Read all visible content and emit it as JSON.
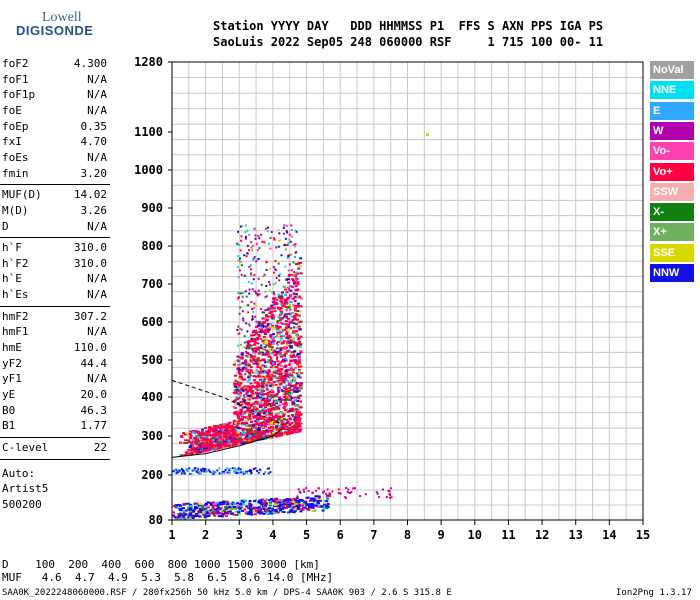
{
  "logo": {
    "line1": "Lowell",
    "line2": "DIGISONDE"
  },
  "header": {
    "line1": "Station YYYY DAY   DDD HHMMSS P1  FFS S AXN PPS IGA PS",
    "line2": "SaoLuis 2022 Sep05 248 060000 RSF     1 715 100 00- 11"
  },
  "params_groups": [
    [
      {
        "name": "foF2",
        "value": "4.300"
      },
      {
        "name": "foF1",
        "value": "N/A"
      },
      {
        "name": "foF1p",
        "value": "N/A"
      },
      {
        "name": "foE",
        "value": "N/A"
      },
      {
        "name": "foEp",
        "value": "0.35"
      },
      {
        "name": "fxI",
        "value": "4.70"
      },
      {
        "name": "foEs",
        "value": "N/A"
      },
      {
        "name": "fmin",
        "value": "3.20"
      }
    ],
    [
      {
        "name": "MUF(D)",
        "value": "14.02"
      },
      {
        "name": "M(D)",
        "value": "3.26"
      },
      {
        "name": "D",
        "value": "N/A"
      }
    ],
    [
      {
        "name": "h`F",
        "value": "310.0"
      },
      {
        "name": "h`F2",
        "value": "310.0"
      },
      {
        "name": "h`E",
        "value": "N/A"
      },
      {
        "name": "h`Es",
        "value": "N/A"
      }
    ],
    [
      {
        "name": "hmF2",
        "value": "307.2"
      },
      {
        "name": "hmF1",
        "value": "N/A"
      },
      {
        "name": "hmE",
        "value": "110.0"
      },
      {
        "name": "yF2",
        "value": "44.4"
      },
      {
        "name": "yF1",
        "value": "N/A"
      },
      {
        "name": "yE",
        "value": "20.0"
      },
      {
        "name": "B0",
        "value": "46.3"
      },
      {
        "name": "B1",
        "value": "1.77"
      }
    ],
    [
      {
        "name": "C-level",
        "value": "22"
      }
    ]
  ],
  "free_text": [
    "Auto:",
    "Artist5",
    "500200"
  ],
  "legend": [
    {
      "label": "NoVal",
      "color": "#a0a0a0"
    },
    {
      "label": "NNE",
      "color": "#00e0f0"
    },
    {
      "label": "E",
      "color": "#30a8ff"
    },
    {
      "label": "W",
      "color": "#b000b0"
    },
    {
      "label": "Vo-",
      "color": "#ff40b0"
    },
    {
      "label": "Vo+",
      "color": "#ff0040"
    },
    {
      "label": "SSW",
      "color": "#f4b0b0"
    },
    {
      "label": "X-",
      "color": "#108010"
    },
    {
      "label": "X+",
      "color": "#70b060"
    },
    {
      "label": "SSE",
      "color": "#d8d800"
    },
    {
      "label": "NNW",
      "color": "#1010e0"
    }
  ],
  "bottom": {
    "d_row": "D    100  200  400  600  800 1000 1500 3000 [km]",
    "muf_row": "MUF   4.6  4.7  4.9  5.3  5.8  6.5  8.6 14.0 [MHz]"
  },
  "footer": {
    "left": "SAA0K_2022248060000.RSF / 280fx256h 50 kHz 5.0 km / DPS-4 SAA0K 903 / 2.6 S 315.8 E",
    "right": "Ion2Png 1.3.17"
  },
  "chart_data": {
    "type": "scatter",
    "title": "",
    "xlabel": "",
    "ylabel": "",
    "xlim": [
      1,
      15
    ],
    "ylim": [
      80,
      1280
    ],
    "x_ticks": [
      1,
      2,
      3,
      4,
      5,
      6,
      7,
      8,
      9,
      10,
      11,
      12,
      13,
      14,
      15
    ],
    "y_ticks": [
      80,
      200,
      300,
      400,
      500,
      600,
      700,
      800,
      900,
      1000,
      1100,
      1280
    ],
    "grid": true,
    "y_scale": "nonlinear",
    "legend_position": "right",
    "clusters": [
      {
        "name": "lower echoes",
        "x_range": [
          1.0,
          5.7
        ],
        "y_range": [
          80,
          150
        ],
        "dominant": "NNW"
      },
      {
        "name": "weak echoes at 150",
        "x_range": [
          4.5,
          7.5
        ],
        "y_range": [
          140,
          165
        ],
        "dominant": "Vo+"
      },
      {
        "name": "F-trace",
        "x_range": [
          1.0,
          4.9
        ],
        "y_range": [
          200,
          900
        ],
        "dominant": "Vo+"
      },
      {
        "name": "outlier",
        "x_range": [
          8.5,
          8.6
        ],
        "y_range": [
          1095,
          1100
        ],
        "dominant": "SSE"
      }
    ],
    "profile_curve": [
      [
        1,
        245
      ],
      [
        2,
        255
      ],
      [
        3,
        275
      ],
      [
        4,
        300
      ],
      [
        4.3,
        320
      ]
    ],
    "o_trace": [
      [
        1,
        445
      ],
      [
        1.5,
        430
      ],
      [
        2.0,
        415
      ],
      [
        2.5,
        400
      ],
      [
        3.0,
        380
      ],
      [
        3.5,
        360
      ],
      [
        4.0,
        340
      ],
      [
        4.3,
        330
      ]
    ]
  }
}
